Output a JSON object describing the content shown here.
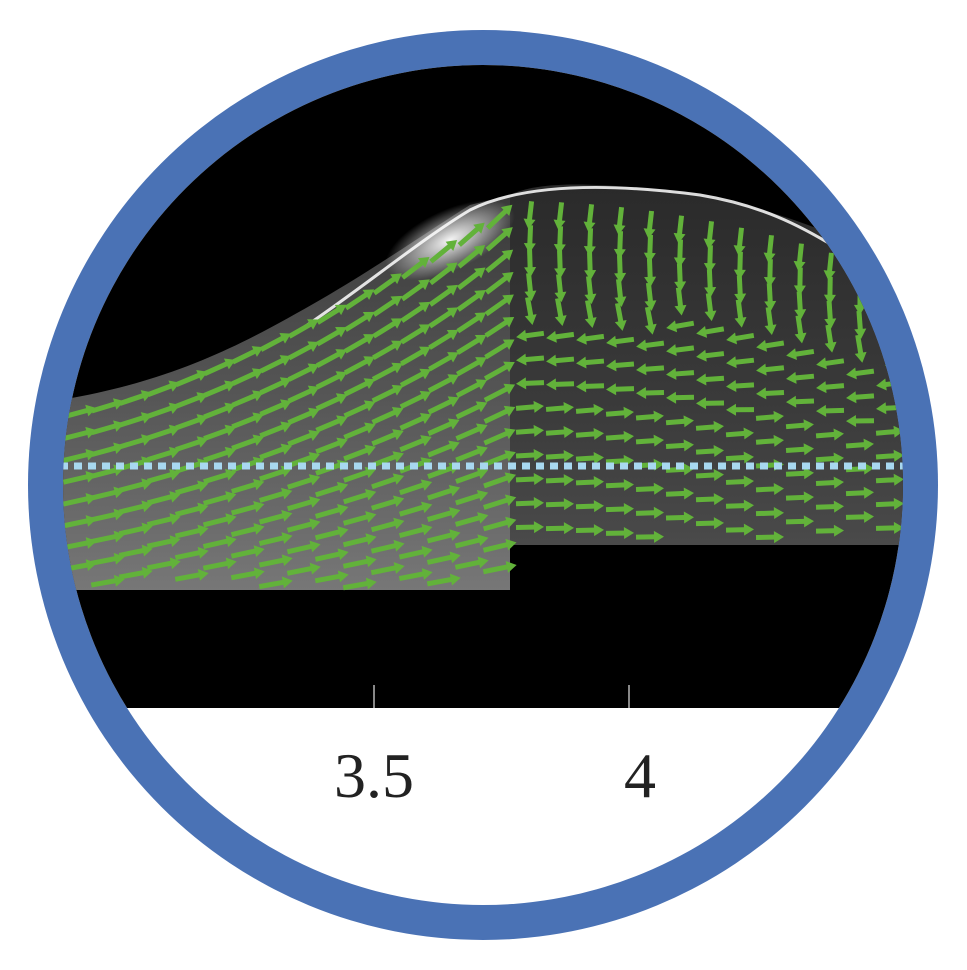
{
  "axis": {
    "tick_labels": [
      "3.5",
      "4"
    ]
  },
  "colors": {
    "ring": "#4A72B5",
    "arrows": "#62B23A",
    "dotted_line": "#A8D8F0",
    "background": "#000000",
    "panel": "#ffffff"
  }
}
